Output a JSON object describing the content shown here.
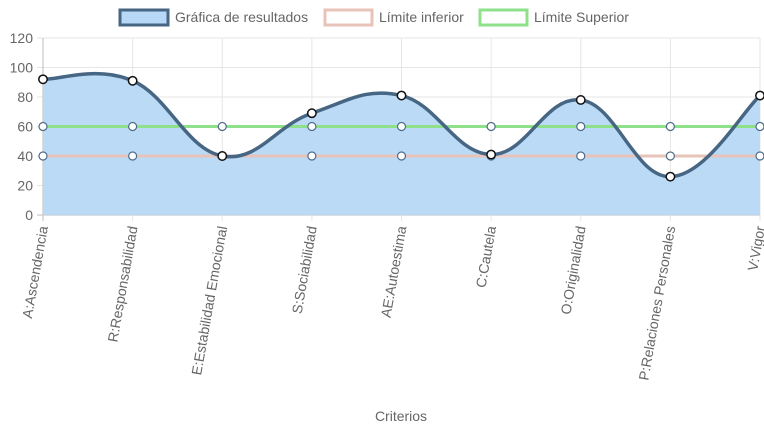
{
  "chart_data": {
    "type": "line",
    "categories": [
      "A:Ascendencia",
      "R:Responsabilidad",
      "E:Estabilidad Emocional",
      "S:Sociabilidad",
      "AE:Autoestima",
      "C:Cautela",
      "O:Originalidad",
      "P:Relaciones Personales",
      "V:Vigor"
    ],
    "series": [
      {
        "name": "Gráfica de resultados",
        "values": [
          92,
          91,
          40,
          69,
          81,
          41,
          78,
          26,
          81
        ],
        "line_color": "#466683",
        "fill_color": "#b7d8f6",
        "filled": true
      },
      {
        "name": "Límite inferior",
        "values": [
          40,
          40,
          40,
          40,
          40,
          40,
          40,
          40,
          40
        ],
        "line_color": "#e8c3b9",
        "filled": false
      },
      {
        "name": "Límite Superior",
        "values": [
          60,
          60,
          60,
          60,
          60,
          60,
          60,
          60,
          60
        ],
        "line_color": "#8ee08b",
        "filled": false
      }
    ],
    "xlabel": "Criterios",
    "ylabel": "",
    "ylim": [
      0,
      120
    ],
    "yticks": [
      0,
      20,
      40,
      60,
      80,
      100,
      120
    ],
    "grid": true,
    "legend_position": "top"
  }
}
